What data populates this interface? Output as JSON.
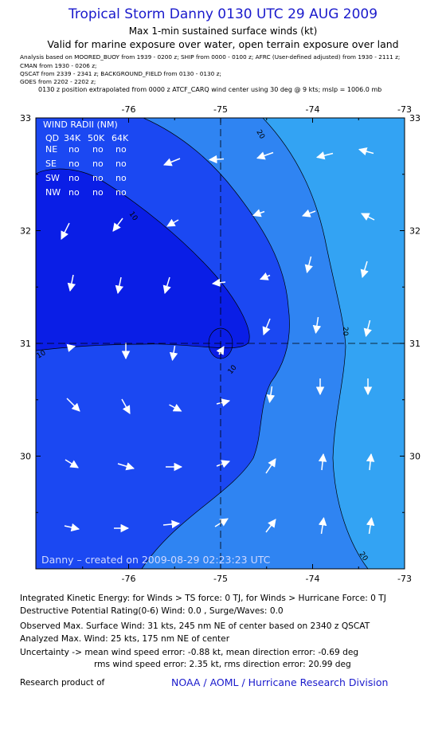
{
  "header": {
    "title": "Tropical Storm Danny 0130 UTC 29 AUG 2009",
    "subtitle1": "Max 1-min sustained surface winds (kt)",
    "subtitle2": "Valid for marine exposure over water, open terrain exposure over land"
  },
  "sources": [
    "Analysis based on   MOORED_BUOY from  1939 - 0200 z;  SHIP from 0000 - 0100 z;   AFRC  (User-defined adjusted)  from 1930 - 2111 z;",
    "CMAN from  1930 - 0206 z;",
    "QSCAT from  2339 - 2341 z;   BACKGROUND_FIELD from 0130 - 0130 z;",
    "GOES from  2202 - 2202 z;"
  ],
  "position_note": "0130 z position extrapolated from 0000 z ATCF_CARQ wind center using 30 deg @ 9 kts; mslp = 1006.0 mb",
  "map": {
    "lon_ticks": [
      "-76",
      "-75",
      "-74",
      "-73"
    ],
    "lat_ticks": [
      "33",
      "32",
      "31",
      "30"
    ],
    "center": {
      "lon": -75.0,
      "lat": 31.1
    },
    "contour_labels": [
      "20",
      "10",
      "10",
      "10",
      "20",
      "20"
    ],
    "colors": {
      "low": "#0a1ee6",
      "mid": "#1b48f2",
      "high": "#2f84f2",
      "highest": "#33a3f3"
    },
    "credit": "Danny – created on 2009-08-29 02:23:23 UTC"
  },
  "wind_radii": {
    "title": "WIND RADII (NM)",
    "header": [
      "QD",
      "34K",
      "50K",
      "64K"
    ],
    "rows": [
      {
        "qd": "NE",
        "v34": "no",
        "v50": "no",
        "v64": "no"
      },
      {
        "qd": "SE",
        "v34": "no",
        "v50": "no",
        "v64": "no"
      },
      {
        "qd": "SW",
        "v34": "no",
        "v50": "no",
        "v64": "no"
      },
      {
        "qd": "NW",
        "v34": "no",
        "v50": "no",
        "v64": "no"
      }
    ]
  },
  "footer": {
    "ike": "Integrated Kinetic Energy:  for Winds > TS force: 0 TJ,  for Winds > Hurricane Force: 0 TJ",
    "dpr": "Destructive Potential Rating(0-6)   Wind: 0.0 , Surge/Waves: 0.0",
    "observed": "Observed Max. Surface Wind: 31 kts, 245 nm NE of center based on 2340 z QSCAT",
    "analyzed": "Analyzed Max. Wind: 25 kts, 175 nm NE of center",
    "uncert1": "Uncertainty -> mean wind speed error:  -0.88 kt,   mean direction error:  -0.69 deg",
    "uncert2": "rms wind speed error: 2.35 kt,   rms direction error: 20.99 deg",
    "research_label": "Research product of",
    "org": "NOAA / AOML / Hurricane Research Division"
  }
}
